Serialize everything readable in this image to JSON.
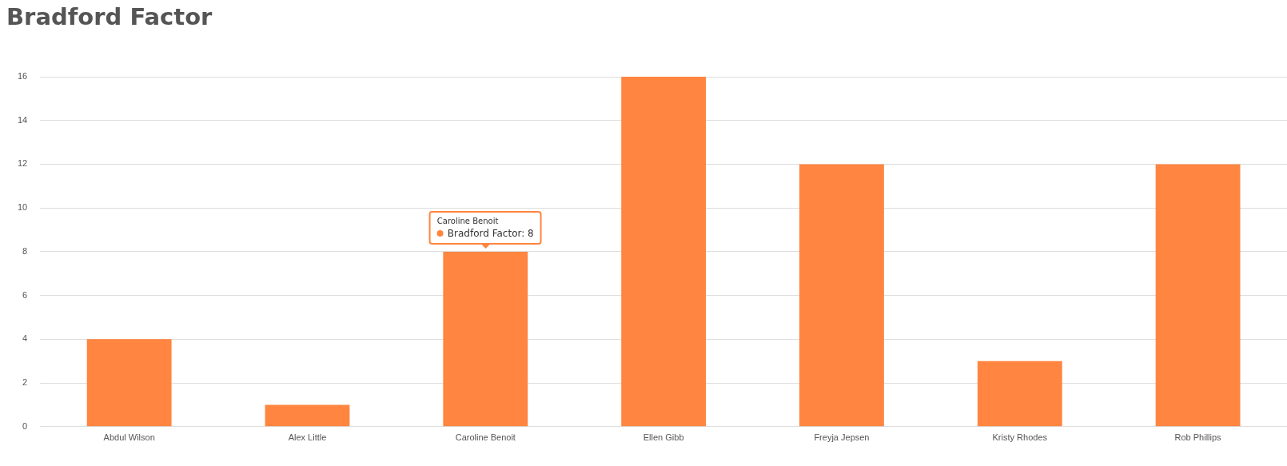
{
  "chart_data": {
    "type": "bar",
    "title": "Bradford Factor",
    "categories": [
      "Abdul Wilson",
      "Alex Little",
      "Caroline Benoit",
      "Ellen Gibb",
      "Freyja Jepsen",
      "Kristy Rhodes",
      "Rob Phillips"
    ],
    "values": [
      4,
      1,
      8,
      16,
      12,
      3,
      12
    ],
    "color": "#ff8540",
    "ylim": [
      0,
      16
    ],
    "yticks": [
      0,
      2,
      4,
      6,
      8,
      10,
      12,
      14,
      16
    ],
    "grid": "y",
    "legend": false,
    "annotations": [
      "Caroline Benoit",
      {
        "text": "Bradford Factor: 8",
        "x": "Caroline Benoit",
        "y": 8
      }
    ]
  }
}
